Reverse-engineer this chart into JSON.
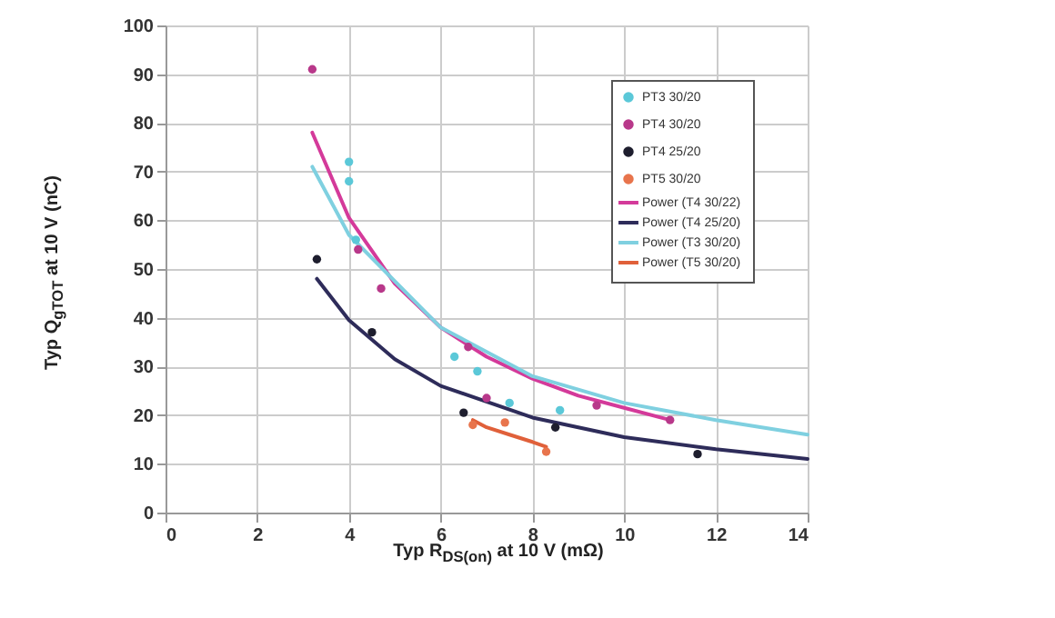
{
  "chart_data": {
    "type": "scatter",
    "xlabel": "Typ R$_{DS(on)}$ at 10 V (mΩ)",
    "ylabel": "Typ Q$_{gTOT}$ at 10 V (nC)",
    "xlim": [
      0,
      14
    ],
    "ylim": [
      0,
      100
    ],
    "xticks": [
      0,
      2,
      4,
      6,
      8,
      10,
      12,
      14
    ],
    "yticks": [
      0,
      10,
      20,
      30,
      40,
      50,
      60,
      70,
      80,
      90,
      100
    ],
    "grid": true,
    "legend": "top right",
    "series": [
      {
        "name": "PT3 30/20",
        "color": "#5bc8d8",
        "x": [
          4.0,
          4.0,
          4.15,
          6.3,
          6.8,
          7.5,
          8.6
        ],
        "values": [
          72,
          68,
          56,
          32,
          29,
          22.5,
          21
        ]
      },
      {
        "name": "PT4 30/20",
        "color": "#b8388a",
        "x": [
          3.2,
          4.2,
          4.7,
          6.6,
          7.0,
          9.4,
          11.0
        ],
        "values": [
          91,
          54,
          46,
          34,
          23.5,
          22,
          19
        ]
      },
      {
        "name": "PT4 25/20",
        "color": "#1e1e2e",
        "x": [
          3.3,
          4.5,
          6.5,
          8.5,
          11.6
        ],
        "values": [
          52,
          37,
          20.5,
          17.5,
          12
        ]
      },
      {
        "name": "PT5 30/20",
        "color": "#e8744c",
        "x": [
          6.7,
          7.4,
          8.3
        ],
        "values": [
          18,
          18.5,
          12.5
        ]
      },
      {
        "name": "Power (T4 30/22)",
        "type": "line",
        "color": "#d43a9a",
        "x": [
          3.2,
          4,
          5,
          6,
          7,
          8,
          9,
          10,
          11
        ],
        "values": [
          78,
          60.5,
          47,
          38,
          32,
          27.5,
          24,
          21.5,
          19
        ]
      },
      {
        "name": "Power (T4 25/20)",
        "type": "line",
        "color": "#2e2c5a",
        "x": [
          3.3,
          4,
          5,
          6,
          8,
          10,
          12,
          14
        ],
        "values": [
          48,
          39.5,
          31.5,
          26,
          19.5,
          15.5,
          13,
          11
        ]
      },
      {
        "name": "Power (T3 30/20)",
        "type": "line",
        "color": "#7fd0e0",
        "x": [
          3.2,
          4,
          6,
          8,
          10,
          12,
          14
        ],
        "values": [
          71,
          57,
          38,
          28,
          22.5,
          19,
          16
        ]
      },
      {
        "name": "Power (T5 30/20)",
        "type": "line",
        "color": "#e0603a",
        "x": [
          6.7,
          7,
          7.5,
          8,
          8.3
        ],
        "values": [
          19,
          17.5,
          16,
          14.5,
          13.5
        ]
      }
    ]
  }
}
